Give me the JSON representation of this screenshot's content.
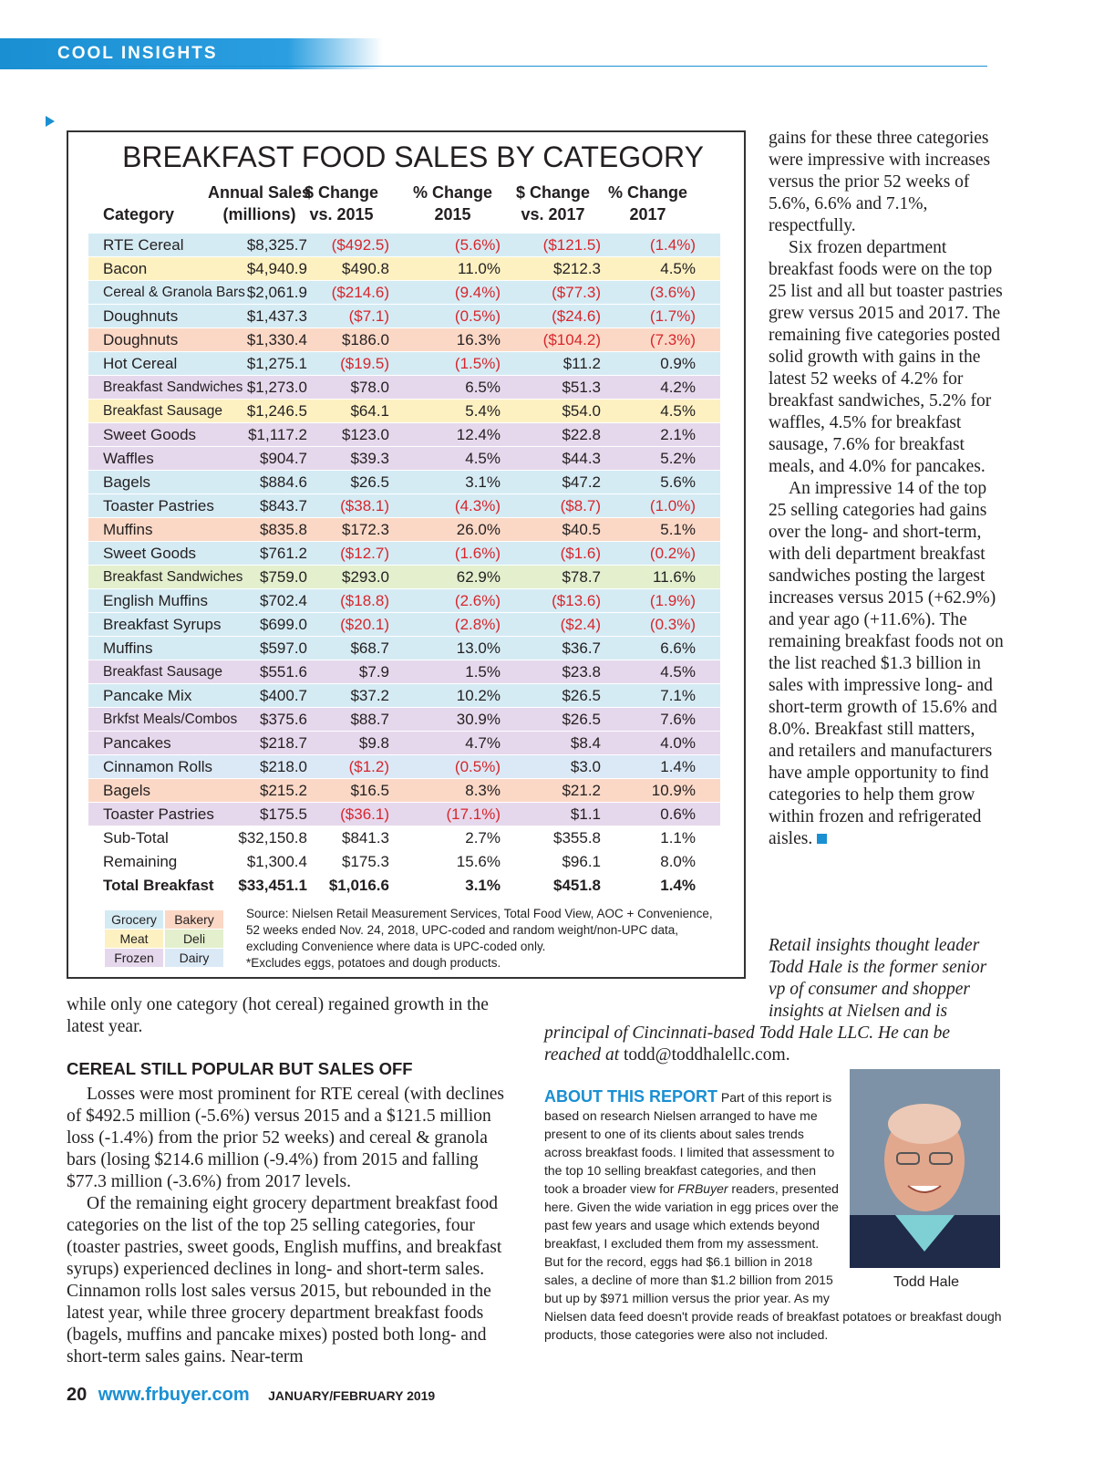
{
  "header": {
    "section": "COOL INSIGHTS"
  },
  "table": {
    "title": "BREAKFAST FOOD SALES BY CATEGORY",
    "columns": [
      [
        "",
        "Category"
      ],
      [
        "Annual Sales",
        "(millions)"
      ],
      [
        "$ Change",
        "vs. 2015"
      ],
      [
        "% Change",
        "2015"
      ],
      [
        "$ Change",
        "vs. 2017"
      ],
      [
        "% Change",
        "2017"
      ]
    ],
    "rows": [
      {
        "cells": [
          "RTE Cereal",
          "$8,325.7",
          "($492.5)",
          "(5.6%)",
          "($121.5)",
          "(1.4%)"
        ],
        "color": "#d5ebf4"
      },
      {
        "cells": [
          "Bacon",
          "$4,940.9",
          "$490.8",
          "11.0%",
          "$212.3",
          "4.5%"
        ],
        "color": "#fdf1c2"
      },
      {
        "cells": [
          "Cereal & Granola Bars",
          "$2,061.9",
          "($214.6)",
          "(9.4%)",
          "($77.3)",
          "(3.6%)"
        ],
        "color": "#d5ebf4"
      },
      {
        "cells": [
          "Doughnuts",
          "$1,437.3",
          "($7.1)",
          "(0.5%)",
          "($24.6)",
          "(1.7%)"
        ],
        "color": "#d5ebf4"
      },
      {
        "cells": [
          "Doughnuts",
          "$1,330.4",
          "$186.0",
          "16.3%",
          "($104.2)",
          "(7.3%)"
        ],
        "color": "#fbd8c6"
      },
      {
        "cells": [
          "Hot Cereal",
          "$1,275.1",
          "($19.5)",
          "(1.5%)",
          "$11.2",
          "0.9%"
        ],
        "color": "#d5ebf4"
      },
      {
        "cells": [
          "Breakfast Sandwiches",
          "$1,273.0",
          "$78.0",
          "6.5%",
          "$51.3",
          "4.2%"
        ],
        "color": "#e6d8ec"
      },
      {
        "cells": [
          "Breakfast Sausage",
          "$1,246.5",
          "$64.1",
          "5.4%",
          "$54.0",
          "4.5%"
        ],
        "color": "#fdf1c2"
      },
      {
        "cells": [
          "Sweet Goods",
          "$1,117.2",
          "$123.0",
          "12.4%",
          "$22.8",
          "2.1%"
        ],
        "color": "#e6d8ec"
      },
      {
        "cells": [
          "Waffles",
          "$904.7",
          "$39.3",
          "4.5%",
          "$44.3",
          "5.2%"
        ],
        "color": "#e6d8ec"
      },
      {
        "cells": [
          "Bagels",
          "$884.6",
          "$26.5",
          "3.1%",
          "$47.2",
          "5.6%"
        ],
        "color": "#d5ebf4"
      },
      {
        "cells": [
          "Toaster Pastries",
          "$843.7",
          "($38.1)",
          "(4.3%)",
          "($8.7)",
          "(1.0%)"
        ],
        "color": "#d5ebf4"
      },
      {
        "cells": [
          "Muffins",
          "$835.8",
          "$172.3",
          "26.0%",
          "$40.5",
          "5.1%"
        ],
        "color": "#fbd8c6"
      },
      {
        "cells": [
          "Sweet Goods",
          "$761.2",
          "($12.7)",
          "(1.6%)",
          "($1.6)",
          "(0.2%)"
        ],
        "color": "#d5ebf4"
      },
      {
        "cells": [
          "Breakfast Sandwiches",
          "$759.0",
          "$293.0",
          "62.9%",
          "$78.7",
          "11.6%"
        ],
        "color": "#e3efcd"
      },
      {
        "cells": [
          "English Muffins",
          "$702.4",
          "($18.8)",
          "(2.6%)",
          "($13.6)",
          "(1.9%)"
        ],
        "color": "#d5ebf4"
      },
      {
        "cells": [
          "Breakfast Syrups",
          "$699.0",
          "($20.1)",
          "(2.8%)",
          "($2.4)",
          "(0.3%)"
        ],
        "color": "#d5ebf4"
      },
      {
        "cells": [
          "Muffins",
          "$597.0",
          "$68.7",
          "13.0%",
          "$36.7",
          "6.6%"
        ],
        "color": "#d5ebf4"
      },
      {
        "cells": [
          "Breakfast Sausage",
          "$551.6",
          "$7.9",
          "1.5%",
          "$23.8",
          "4.5%"
        ],
        "color": "#e6d8ec"
      },
      {
        "cells": [
          "Pancake Mix",
          "$400.7",
          "$37.2",
          "10.2%",
          "$26.5",
          "7.1%"
        ],
        "color": "#d5ebf4"
      },
      {
        "cells": [
          "Brkfst Meals/Combos",
          "$375.6",
          "$88.7",
          "30.9%",
          "$26.5",
          "7.6%"
        ],
        "color": "#e6d8ec"
      },
      {
        "cells": [
          "Pancakes",
          "$218.7",
          "$9.8",
          "4.7%",
          "$8.4",
          "4.0%"
        ],
        "color": "#e6d8ec"
      },
      {
        "cells": [
          "Cinnamon Rolls",
          "$218.0",
          "($1.2)",
          "(0.5%)",
          "$3.0",
          "1.4%"
        ],
        "color": "#dbe9f6"
      },
      {
        "cells": [
          "Bagels",
          "$215.2",
          "$16.5",
          "8.3%",
          "$21.2",
          "10.9%"
        ],
        "color": "#fbd8c6"
      },
      {
        "cells": [
          "Toaster Pastries",
          "$175.5",
          "($36.1)",
          "(17.1%)",
          "$1.1",
          "0.6%"
        ],
        "color": "#e6d8ec"
      }
    ],
    "totals": [
      {
        "cells": [
          "Sub-Total",
          "$32,150.8",
          "$841.3",
          "2.7%",
          "$355.8",
          "1.1%"
        ]
      },
      {
        "cells": [
          "Remaining",
          "$1,300.4",
          "$175.3",
          "15.6%",
          "$96.1",
          "8.0%"
        ]
      },
      {
        "cells": [
          "Total Breakfast",
          "$33,451.1",
          "$1,016.6",
          "3.1%",
          "$451.8",
          "1.4%"
        ],
        "bold": true
      }
    ],
    "legend": [
      {
        "label": "Grocery",
        "color": "#d5ebf4"
      },
      {
        "label": "Bakery",
        "color": "#fbd8c6"
      },
      {
        "label": "Meat",
        "color": "#fdf1c2"
      },
      {
        "label": "Deli",
        "color": "#e3efcd"
      },
      {
        "label": "Frozen",
        "color": "#e6d8ec"
      },
      {
        "label": "Dairy",
        "color": "#dbe9f6"
      }
    ],
    "source": [
      "Source: Nielsen Retail Measurement Services, Total Food View, AOC + Convenience, 52 weeks ended Nov. 24, 2018, UPC-coded and random weight/non-UPC data, excluding Convenience where data is UPC-coded only.",
      "*Excludes eggs, potatoes and dough products."
    ]
  },
  "left_column": {
    "lead": "while only one category (hot cereal) regained growth in the latest year.",
    "heading": "CEREAL STILL POPULAR BUT SALES OFF",
    "paragraphs": [
      "Losses were most prominent for RTE cereal (with declines of $492.5 million (-5.6%) versus 2015 and a $121.5 million loss (-1.4%) from the prior 52 weeks) and cereal & granola bars (losing $214.6 million (-9.4%) from 2015 and falling $77.3 million (-3.6%) from 2017 levels.",
      "Of the remaining eight grocery department breakfast food categories on the list of the top 25 selling categories, four (toaster pastries, sweet goods, English muffins, and breakfast syrups) experienced declines in long- and short-term sales. Cinnamon rolls lost sales versus 2015, but rebounded in the latest year, while three grocery department breakfast foods (bagels, muffins and pancake mixes) posted both long- and short-term sales gains. Near-term"
    ]
  },
  "right_column": {
    "paragraphs": [
      "gains for these three categories were impressive with increases versus the prior 52 weeks of 5.6%, 6.6% and 7.1%, respectfully.",
      "Six frozen department breakfast foods were on the top 25 list and all but toaster pastries grew versus 2015 and 2017. The remaining five categories posted solid growth with gains in the latest 52 weeks of 4.2% for breakfast sandwiches, 5.2% for waffles, 4.5% for breakfast sausage, 7.6% for breakfast meals, and 4.0% for pancakes.",
      "An impressive 14 of the top 25 selling categories had gains over the long- and short-term, with deli department breakfast sandwiches posting the largest increases versus 2015 (+62.9%) and year ago (+11.6%). The remaining breakfast foods not on the list reached $1.3 billion in sales with impressive long- and short-term growth of 15.6% and 8.0%. Breakfast still matters, and retailers and manufacturers have ample opportunity to find categories to help them grow within frozen and refrigerated aisles."
    ]
  },
  "byline": {
    "text": "Retail insights thought leader Todd Hale is the former senior vp of consumer and shopper insights at Nielsen and is principal of Cincinnati-based Todd Hale LLC. He can be reached at",
    "email": "todd@toddhalellc.com."
  },
  "about": {
    "heading": "ABOUT THIS REPORT",
    "text_before": "Part of this report is based on research Nielsen arranged to have me present to one of its clients about sales trends across breakfast foods. I limited that assessment to the top 10 selling breakfast categories, and then took a broader view for",
    "publication": "FRBuyer",
    "text_after": "readers, presented here. Given the wide variation in egg prices over the past few years and usage which extends beyond breakfast, I excluded them from my assessment. But for the record, eggs had $6.1 billion in 2018 sales, a decline of more than $1.2 billion from 2015 but up by $971 million versus the prior year. As my Nielsen data feed doesn't provide reads of breakfast potatoes or breakfast dough products, those categories were also not included.",
    "photo_caption": "Todd Hale"
  },
  "footer": {
    "page": "20",
    "site": "www.frbuyer.com",
    "issue": "JANUARY/FEBRUARY 2019"
  }
}
